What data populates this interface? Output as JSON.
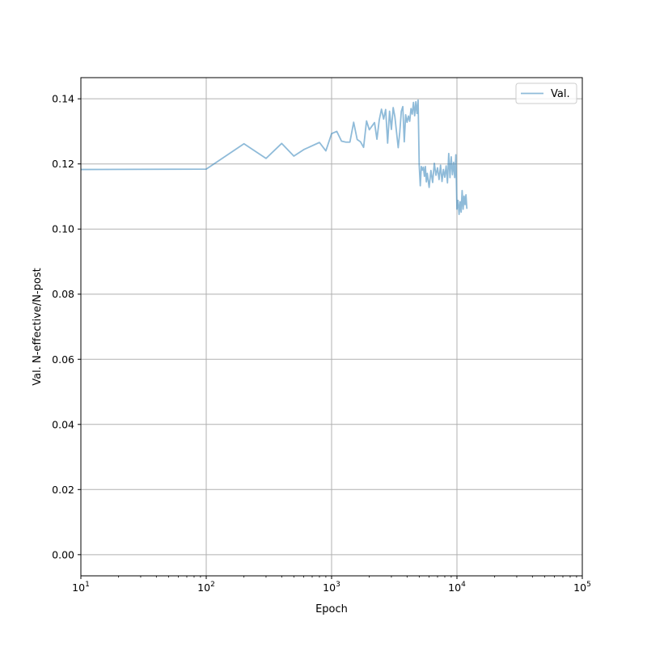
{
  "chart_data": {
    "type": "line",
    "xlabel": "Epoch",
    "ylabel": "Val. N-effective/N-post",
    "xscale": "log",
    "xlim": [
      10,
      100000
    ],
    "ylim": [
      -0.0065,
      0.1465
    ],
    "grid": true,
    "legend_placement": "top-right",
    "x_ticks": [
      {
        "value": 10,
        "base": "10",
        "exp": "1"
      },
      {
        "value": 100,
        "base": "10",
        "exp": "2"
      },
      {
        "value": 1000,
        "base": "10",
        "exp": "3"
      },
      {
        "value": 10000,
        "base": "10",
        "exp": "4"
      },
      {
        "value": 100000,
        "base": "10",
        "exp": "5"
      }
    ],
    "y_ticks": [
      {
        "value": 0.0,
        "label": "0.00"
      },
      {
        "value": 0.02,
        "label": "0.02"
      },
      {
        "value": 0.04,
        "label": "0.04"
      },
      {
        "value": 0.06,
        "label": "0.06"
      },
      {
        "value": 0.08,
        "label": "0.08"
      },
      {
        "value": 0.1,
        "label": "0.10"
      },
      {
        "value": 0.12,
        "label": "0.12"
      },
      {
        "value": 0.14,
        "label": "0.14"
      }
    ],
    "series": [
      {
        "name": "Val.",
        "color": "#1f77b4",
        "opacity": 0.5,
        "x": [
          10,
          100,
          200,
          300,
          400,
          500,
          600,
          800,
          900,
          1000,
          1100,
          1200,
          1300,
          1400,
          1500,
          1600,
          1700,
          1800,
          1900,
          2000,
          2200,
          2300,
          2400,
          2500,
          2600,
          2700,
          2800,
          2900,
          3000,
          3100,
          3200,
          3300,
          3400,
          3500,
          3600,
          3700,
          3800,
          3900,
          4000,
          4100,
          4200,
          4300,
          4400,
          4500,
          4600,
          4700,
          4800,
          4900,
          5000,
          5100,
          5200,
          5300,
          5400,
          5500,
          5600,
          5700,
          5800,
          6000,
          6200,
          6400,
          6600,
          6800,
          7000,
          7200,
          7400,
          7600,
          7800,
          8000,
          8200,
          8400,
          8600,
          8800,
          9000,
          9200,
          9400,
          9600,
          9800,
          10000,
          10200,
          10400,
          10600,
          10800,
          11000,
          11200,
          11400,
          11600,
          11800,
          12000
        ],
        "values": [
          0.1183,
          0.1184,
          0.1262,
          0.1217,
          0.1263,
          0.1224,
          0.1244,
          0.1266,
          0.124,
          0.1293,
          0.13,
          0.127,
          0.1267,
          0.1267,
          0.1328,
          0.1275,
          0.1268,
          0.1251,
          0.1332,
          0.1305,
          0.1327,
          0.1276,
          0.1335,
          0.1368,
          0.1338,
          0.1367,
          0.1264,
          0.1362,
          0.1306,
          0.1373,
          0.1344,
          0.1296,
          0.125,
          0.1298,
          0.1362,
          0.1376,
          0.1268,
          0.1351,
          0.1328,
          0.1347,
          0.1331,
          0.137,
          0.1353,
          0.1389,
          0.1348,
          0.1391,
          0.1355,
          0.1396,
          0.1197,
          0.1133,
          0.1192,
          0.1181,
          0.119,
          0.1162,
          0.1192,
          0.1145,
          0.1171,
          0.1128,
          0.118,
          0.1143,
          0.1202,
          0.1165,
          0.1188,
          0.1152,
          0.1196,
          0.1146,
          0.1183,
          0.1159,
          0.1194,
          0.1142,
          0.1232,
          0.1158,
          0.1222,
          0.1167,
          0.1205,
          0.1158,
          0.1228,
          0.1061,
          0.1088,
          0.1045,
          0.1084,
          0.1052,
          0.1118,
          0.1061,
          0.1101,
          0.1075,
          0.1105,
          0.1062
        ]
      }
    ]
  }
}
